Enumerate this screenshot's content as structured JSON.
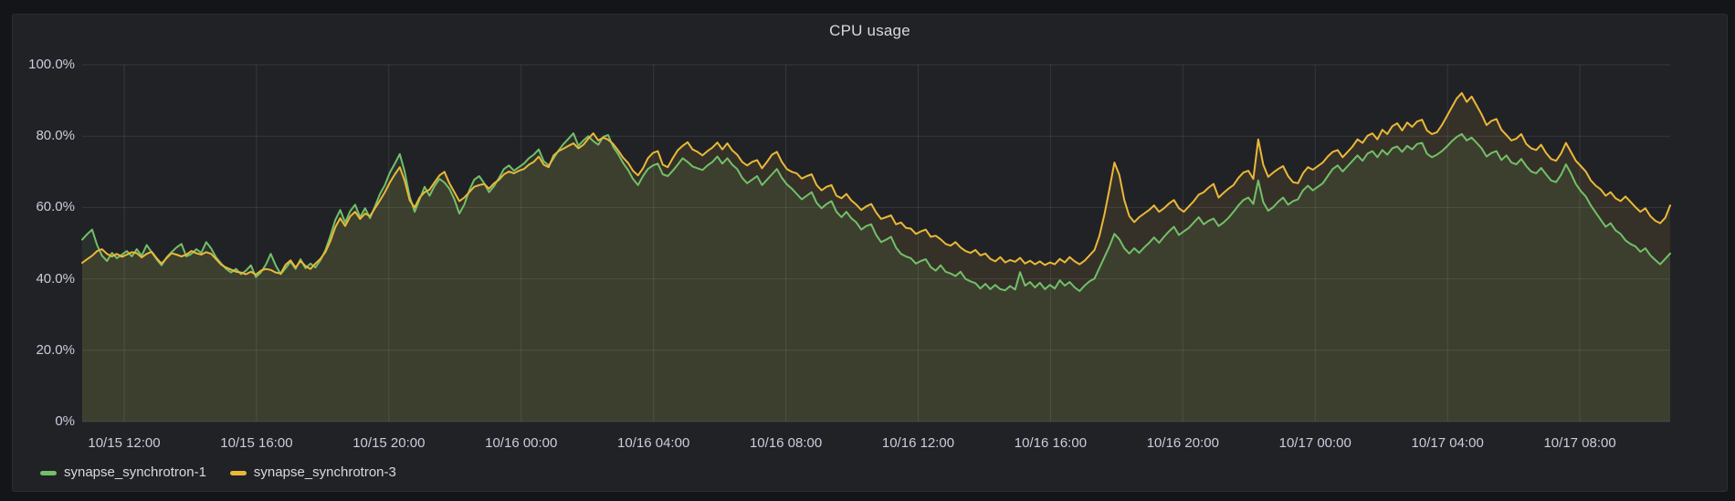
{
  "panel": {
    "title": "CPU usage"
  },
  "colors": {
    "background": "#131519",
    "panel_background": "#212226",
    "grid": "rgba(204,204,220,0.12)",
    "tick_text": "#ccccdc",
    "title_text": "#d8d9da",
    "series_green": "#73BF69",
    "series_yellow": "#EAB839"
  },
  "legend": {
    "items": [
      {
        "label": "synapse_synchrotron-1",
        "color": "#73BF69"
      },
      {
        "label": "synapse_synchrotron-3",
        "color": "#EAB839"
      }
    ]
  },
  "chart_data": {
    "type": "line",
    "title": "CPU usage",
    "xlabel": "",
    "ylabel": "",
    "ylim": [
      0,
      100
    ],
    "grid": true,
    "legend_position": "bottom-left",
    "time_span_hours": 48,
    "t_start": 0,
    "t_step": 0.15,
    "y_ticks": [
      {
        "value": 0,
        "label": "0%"
      },
      {
        "value": 20,
        "label": "20.0%"
      },
      {
        "value": 40,
        "label": "40.0%"
      },
      {
        "value": 60,
        "label": "60.0%"
      },
      {
        "value": 80,
        "label": "80.0%"
      },
      {
        "value": 100,
        "label": "100.0%"
      }
    ],
    "x_ticks": [
      {
        "t": 1.27,
        "label": "10/15 12:00"
      },
      {
        "t": 5.27,
        "label": "10/15 16:00"
      },
      {
        "t": 9.27,
        "label": "10/15 20:00"
      },
      {
        "t": 13.27,
        "label": "10/16 00:00"
      },
      {
        "t": 17.27,
        "label": "10/16 04:00"
      },
      {
        "t": 21.27,
        "label": "10/16 08:00"
      },
      {
        "t": 25.27,
        "label": "10/16 12:00"
      },
      {
        "t": 29.27,
        "label": "10/16 16:00"
      },
      {
        "t": 33.27,
        "label": "10/16 20:00"
      },
      {
        "t": 37.27,
        "label": "10/17 00:00"
      },
      {
        "t": 41.27,
        "label": "10/17 04:00"
      },
      {
        "t": 45.27,
        "label": "10/17 08:00"
      }
    ],
    "series": [
      {
        "name": "synapse_synchrotron-1",
        "color": "#73BF69",
        "unit": "percent",
        "values": [
          51,
          52.5,
          53.8,
          49.5,
          46.5,
          45,
          47.3,
          45.8,
          46.8,
          47.8,
          46.3,
          48.3,
          46.5,
          49.5,
          47.5,
          45.5,
          43.8,
          46,
          47.5,
          48.8,
          49.8,
          46.3,
          47,
          48.3,
          47.3,
          50.3,
          48.5,
          46,
          44.3,
          42.8,
          41.8,
          42.8,
          41.3,
          42.3,
          43.8,
          40.5,
          41.8,
          44,
          47,
          43.8,
          41.3,
          43,
          44.8,
          42.8,
          45.5,
          43,
          44.3,
          43.2,
          45.2,
          48,
          52,
          56.5,
          59.3,
          55.8,
          59,
          60.8,
          57.3,
          59.8,
          57,
          60.3,
          63.8,
          66.3,
          69.8,
          72.3,
          75,
          70,
          63,
          58.8,
          62.3,
          65.8,
          63.3,
          66,
          68,
          67,
          65.3,
          62.3,
          58.3,
          60.8,
          64.8,
          67.8,
          68.8,
          66.8,
          64.3,
          66,
          68.3,
          70.8,
          71.8,
          70.3,
          71.3,
          72.3,
          73.8,
          74.8,
          76.3,
          73,
          71.8,
          73.8,
          76,
          77.8,
          79.3,
          80.8,
          77.3,
          78.8,
          80,
          78.6,
          77.6,
          79.8,
          80.3,
          77,
          75,
          72.5,
          70.5,
          68,
          66.3,
          68.8,
          70.8,
          71.8,
          72.3,
          69.3,
          68.8,
          70.3,
          72,
          73.8,
          72.8,
          71.5,
          71,
          70.5,
          71.8,
          72.8,
          74.3,
          72.3,
          73.8,
          72,
          70.8,
          68.3,
          66.8,
          67.8,
          68.8,
          66.3,
          67.8,
          69.3,
          70.8,
          68.3,
          66.5,
          65.3,
          63.8,
          62.3,
          63.3,
          64.3,
          61.3,
          59.8,
          61,
          61.8,
          58.8,
          57.3,
          58.8,
          57,
          55.8,
          53.8,
          54.8,
          55.3,
          52.3,
          50.3,
          51,
          51.8,
          48.8,
          47,
          46.3,
          45.8,
          44.3,
          45,
          45.5,
          43.3,
          42.3,
          43.8,
          42,
          41.5,
          40.8,
          42,
          40,
          39.3,
          38.8,
          37.3,
          38.6,
          37.1,
          38.3,
          37.1,
          36.8,
          38,
          37,
          41.9,
          38.1,
          39.1,
          37.6,
          38.9,
          37.1,
          38.3,
          37.3,
          39.6,
          38.1,
          39.1,
          37.6,
          36.6,
          38.1,
          39.3,
          40.1,
          43.1,
          46.1,
          49.1,
          52.6,
          51.1,
          48.6,
          47.1,
          48.6,
          47.3,
          48.8,
          50.1,
          51.6,
          50.1,
          51.8,
          53.3,
          54.6,
          52.3,
          53.3,
          54.3,
          55.8,
          57.3,
          55.3,
          56.3,
          56.9,
          54.8,
          55.8,
          57.1,
          58.8,
          60.6,
          62.1,
          62.8,
          61,
          67.6,
          61.5,
          59.1,
          60.1,
          61.6,
          62.8,
          60.8,
          61.8,
          62.3,
          64.8,
          66.1,
          64.8,
          65.8,
          66.8,
          68.8,
          70.8,
          71.8,
          70.1,
          71.6,
          73.1,
          74.6,
          73.1,
          75.1,
          75.8,
          74.1,
          76.1,
          74.8,
          76.6,
          77.1,
          75.6,
          77.3,
          76.3,
          77.8,
          78.1,
          75.1,
          74.1,
          74.8,
          75.8,
          77.1,
          78.6,
          79.8,
          80.6,
          78.8,
          79.6,
          78.1,
          76.6,
          74.3,
          75.3,
          75.8,
          73.3,
          74.6,
          72.6,
          72.1,
          73.6,
          71.6,
          70.1,
          69.6,
          71.1,
          69.3,
          67.6,
          67.1,
          69.1,
          72.1,
          69.6,
          66.6,
          64.6,
          63.1,
          60.6,
          58.6,
          56.6,
          54.6,
          55.6,
          53.6,
          52.6,
          50.8,
          49.8,
          49.1,
          47.6,
          48.6,
          46.6,
          45.3,
          44.1,
          45.6,
          47.1
        ]
      },
      {
        "name": "synapse_synchrotron-3",
        "color": "#EAB839",
        "unit": "percent",
        "values": [
          44.5,
          45.5,
          46.5,
          47.8,
          48.3,
          47,
          46.3,
          47,
          46.2,
          46.8,
          47.5,
          47.2,
          46,
          47,
          47.6,
          45.8,
          44.3,
          45.8,
          47.2,
          46.8,
          46.3,
          46.8,
          47.8,
          47.2,
          46.8,
          47.5,
          47,
          45.5,
          44,
          43.2,
          42.6,
          42,
          41.8,
          41.3,
          42,
          41.2,
          42.3,
          42.8,
          42.5,
          41.8,
          41.5,
          44,
          45.2,
          43.2,
          45,
          43.6,
          42.8,
          44.3,
          45.6,
          47.5,
          50.5,
          54.5,
          57,
          54.8,
          57.5,
          58.8,
          56.8,
          58.3,
          57.6,
          59.8,
          62,
          64.3,
          67,
          69.3,
          71.3,
          67.5,
          62,
          60,
          62.8,
          64.3,
          65,
          67,
          69,
          70,
          66.8,
          64.3,
          61.8,
          62.8,
          64.3,
          65.8,
          66.3,
          66.6,
          65.3,
          66.8,
          67.8,
          69.3,
          70.1,
          69.6,
          70.3,
          70.8,
          72,
          72.8,
          74.3,
          72,
          71.3,
          74.6,
          75.8,
          76.5,
          77.3,
          78,
          76.6,
          77.6,
          79.3,
          80.8,
          78.8,
          79.6,
          79,
          77.8,
          76,
          74,
          72.5,
          70.3,
          69,
          71,
          73.8,
          75.3,
          75.8,
          72,
          71.3,
          73.8,
          76,
          77.3,
          78.3,
          76.3,
          75.6,
          74.6,
          75.8,
          76.8,
          78.2,
          76.3,
          78,
          76,
          74.8,
          72.8,
          71.8,
          72.8,
          73.3,
          71,
          72.8,
          74.8,
          75.6,
          72.8,
          70.8,
          70,
          69.6,
          68.1,
          68.8,
          69.3,
          66.3,
          64.8,
          65.8,
          66.3,
          63.3,
          62.6,
          63.8,
          62,
          60.8,
          59.3,
          60.3,
          61,
          58.6,
          56.8,
          57.3,
          57.8,
          55.3,
          55.8,
          54.3,
          54.1,
          52.6,
          53.3,
          53.8,
          51.8,
          52.1,
          51.1,
          49.8,
          49.3,
          50.3,
          48.8,
          47.8,
          47.3,
          48.1,
          46.6,
          47.1,
          45.6,
          44.9,
          46.1,
          44.6,
          45.3,
          44.8,
          45.9,
          44.3,
          45.1,
          44.1,
          44.9,
          43.9,
          44.6,
          44.1,
          45.6,
          44.6,
          46.1,
          44.9,
          44.1,
          45.1,
          46.6,
          48.1,
          52.1,
          58.1,
          65.1,
          72.6,
          69.1,
          62.1,
          57.6,
          55.9,
          57.3,
          58.3,
          59.3,
          60.6,
          58.8,
          59.8,
          61.1,
          62.1,
          59.8,
          58.8,
          60.3,
          61.8,
          63.6,
          64.3,
          65.6,
          66.6,
          62.8,
          64.1,
          65.3,
          66.3,
          68.3,
          69.8,
          70.3,
          68,
          79.1,
          72,
          68.6,
          69.8,
          70.8,
          71.6,
          68.8,
          67.1,
          66.8,
          69.6,
          71.3,
          70.6,
          71.6,
          72.6,
          74.3,
          75.6,
          76.1,
          74.1,
          75.6,
          77.1,
          79.1,
          78.1,
          80.1,
          80.8,
          79.1,
          81.8,
          80.6,
          82.8,
          83.6,
          81.6,
          83.8,
          82.6,
          84.1,
          84.6,
          81.6,
          80.6,
          81.1,
          83.1,
          85.6,
          88.1,
          90.6,
          92.1,
          89.6,
          91.1,
          88.6,
          86.1,
          83.1,
          84.3,
          84.8,
          81.8,
          80.3,
          78.8,
          79.3,
          80.6,
          77.8,
          76.6,
          76.1,
          77.6,
          75.3,
          73.6,
          73.1,
          75.1,
          78.1,
          75.6,
          73.1,
          71.6,
          70.1,
          67.6,
          66.1,
          65.1,
          63.3,
          64.3,
          62.6,
          61.8,
          63.1,
          61.6,
          60.1,
          58.8,
          59.8,
          57.6,
          56.3,
          55.6,
          57.1,
          60.6
        ]
      }
    ]
  }
}
